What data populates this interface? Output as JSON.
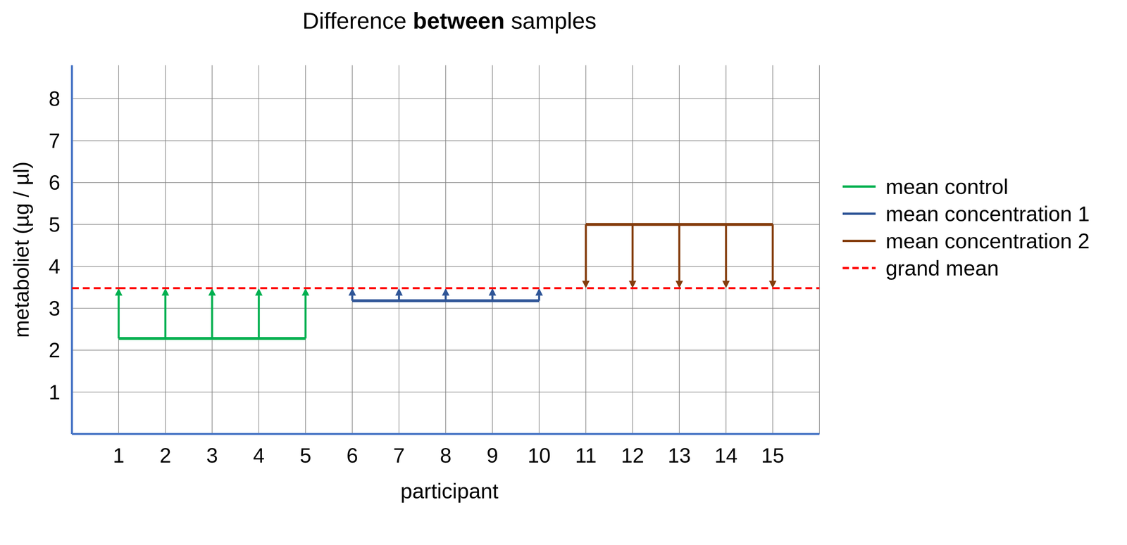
{
  "chart_data": {
    "type": "line",
    "title": "Difference between samples",
    "x_label": "participant",
    "y_label": "metaboliet (µg / µl)",
    "x": [
      1,
      2,
      3,
      4,
      5,
      6,
      7,
      8,
      9,
      10,
      11,
      12,
      13,
      14,
      15
    ],
    "xlim": [
      0,
      16
    ],
    "xticks": [
      1,
      2,
      3,
      4,
      5,
      6,
      7,
      8,
      9,
      10,
      11,
      12,
      13,
      14,
      15
    ],
    "ylim": [
      0,
      8.8
    ],
    "yticks": [
      1,
      2,
      3,
      4,
      5,
      6,
      7,
      8
    ],
    "grid": true,
    "legend": "right",
    "series": [
      {
        "name": "mean control",
        "color": "#00b050",
        "marker": "arrow",
        "values": [
          2.28,
          2.28,
          2.28,
          2.28,
          2.28,
          null,
          null,
          null,
          null,
          null,
          null,
          null,
          null,
          null,
          null
        ]
      },
      {
        "name": "mean concentration 1",
        "color": "#2f5597",
        "marker": "arrow",
        "values": [
          null,
          null,
          null,
          null,
          null,
          3.18,
          3.18,
          3.18,
          3.18,
          3.18,
          null,
          null,
          null,
          null,
          null
        ]
      },
      {
        "name": "mean concentration 2",
        "color": "#843c0c",
        "marker": "arrow",
        "values": [
          null,
          null,
          null,
          null,
          null,
          null,
          null,
          null,
          null,
          null,
          5.0,
          5.0,
          5.0,
          5.0,
          5.0
        ]
      },
      {
        "name": "grand mean",
        "color": "#ff0000",
        "type": "reference",
        "line_style": "dashed",
        "values": [
          3.48,
          3.48,
          3.48,
          3.48,
          3.48,
          3.48,
          3.48,
          3.48,
          3.48,
          3.48,
          3.48,
          3.48,
          3.48,
          3.48,
          3.48
        ]
      }
    ]
  }
}
